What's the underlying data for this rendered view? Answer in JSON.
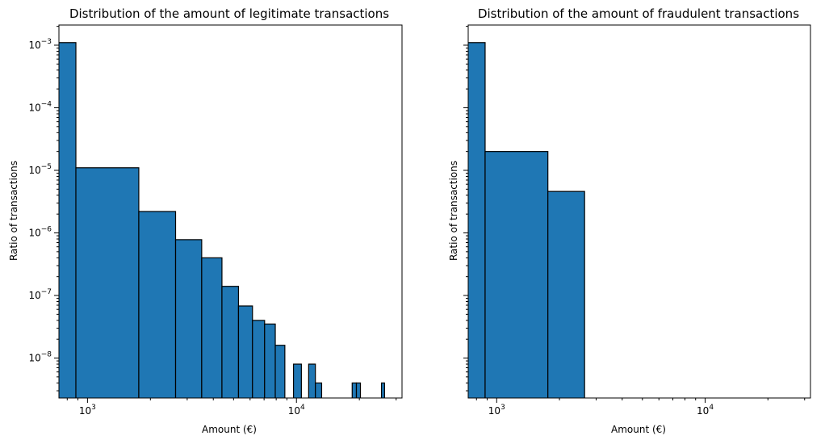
{
  "chart_data": [
    {
      "type": "bar",
      "title": "Distribution of the amount of legitimate transactions",
      "xlabel": "Amount (€)",
      "ylabel": "Ratio of transactions",
      "xscale": "log",
      "yscale": "log",
      "xlim": [
        730,
        32000
      ],
      "ylim": [
        2.3e-09,
        0.0021
      ],
      "bar_color": "#1f77b4",
      "edge_color": "#000000",
      "x_ticks": [
        {
          "value": 1000,
          "base": "10",
          "exp": "3"
        },
        {
          "value": 10000,
          "base": "10",
          "exp": "4"
        }
      ],
      "y_ticks": [
        {
          "value": 1e-08,
          "base": "10",
          "exp": "−8"
        },
        {
          "value": 1e-07,
          "base": "10",
          "exp": "−7"
        },
        {
          "value": 1e-06,
          "base": "10",
          "exp": "−6"
        },
        {
          "value": 1e-05,
          "base": "10",
          "exp": "−5"
        },
        {
          "value": 0.0001,
          "base": "10",
          "exp": "−4"
        },
        {
          "value": 0.001,
          "base": "10",
          "exp": "−3"
        }
      ],
      "bins": [
        {
          "x0": 0,
          "x1": 880,
          "value": 0.0011
        },
        {
          "x0": 880,
          "x1": 1760,
          "value": 1.1e-05
        },
        {
          "x0": 1760,
          "x1": 2640,
          "value": 2.2e-06
        },
        {
          "x0": 2640,
          "x1": 3520,
          "value": 7.8e-07
        },
        {
          "x0": 3520,
          "x1": 4400,
          "value": 4e-07
        },
        {
          "x0": 4400,
          "x1": 5280,
          "value": 1.4e-07
        },
        {
          "x0": 5280,
          "x1": 6160,
          "value": 6.8e-08
        },
        {
          "x0": 6160,
          "x1": 7040,
          "value": 4e-08
        },
        {
          "x0": 7040,
          "x1": 7920,
          "value": 3.5e-08
        },
        {
          "x0": 7920,
          "x1": 8800,
          "value": 1.6e-08
        },
        {
          "x0": 9680,
          "x1": 10560,
          "value": 8e-09
        },
        {
          "x0": 11440,
          "x1": 12320,
          "value": 8e-09
        },
        {
          "x0": 12320,
          "x1": 13200,
          "value": 4e-09
        },
        {
          "x0": 18480,
          "x1": 19360,
          "value": 4e-09
        },
        {
          "x0": 19360,
          "x1": 20240,
          "value": 4e-09
        },
        {
          "x0": 25520,
          "x1": 26400,
          "value": 4e-09
        }
      ]
    },
    {
      "type": "bar",
      "title": "Distribution of the amount of fraudulent transactions",
      "xlabel": "Amount (€)",
      "ylabel": "Ratio of transactions",
      "xscale": "log",
      "yscale": "log",
      "xlim": [
        730,
        32000
      ],
      "ylim": [
        2.3e-09,
        0.0021
      ],
      "bar_color": "#1f77b4",
      "edge_color": "#000000",
      "x_ticks": [
        {
          "value": 1000,
          "base": "10",
          "exp": "3"
        },
        {
          "value": 10000,
          "base": "10",
          "exp": "4"
        }
      ],
      "y_ticks": [],
      "shared_y_with_first": true,
      "bins": [
        {
          "x0": 0,
          "x1": 880,
          "value": 0.0011
        },
        {
          "x0": 880,
          "x1": 1760,
          "value": 2e-05
        },
        {
          "x0": 1760,
          "x1": 2640,
          "value": 4.6e-06
        }
      ]
    }
  ]
}
